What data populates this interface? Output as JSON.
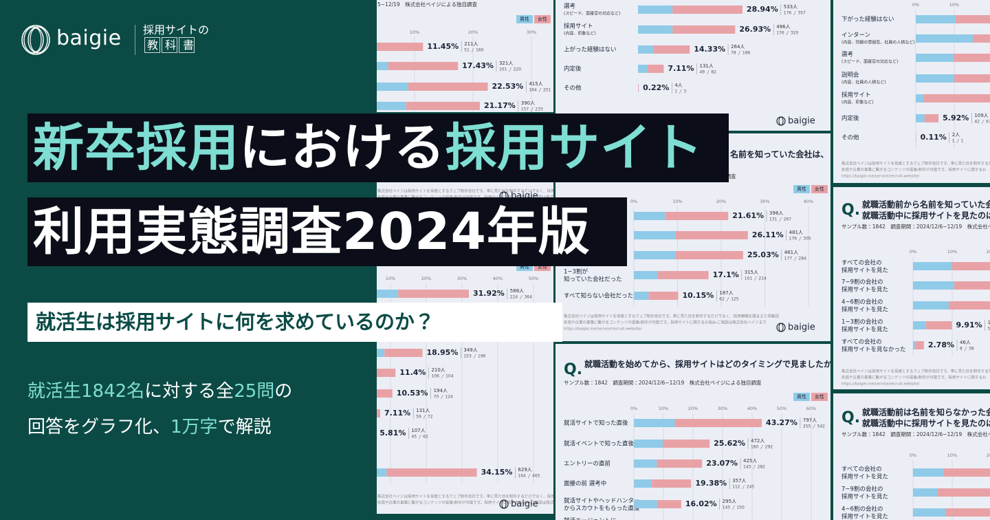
{
  "header": {
    "logo": "baigie",
    "tagline": "採用サイトの",
    "series_name": "教科書"
  },
  "title": {
    "line1": [
      {
        "text": "新卒採用",
        "accent": true
      },
      {
        "text": "における"
      },
      {
        "text": "採用サイト",
        "accent": true
      }
    ],
    "line2": "利用実態調査2024年版"
  },
  "subtitle": "就活生は採用サイトに何を求めているのか？",
  "description": [
    [
      {
        "text": "就活生1842名",
        "accent": true
      },
      {
        "text": "に対する全"
      },
      {
        "text": "25問",
        "accent": true
      },
      {
        "text": "の"
      }
    ],
    [
      {
        "text": "回答をグラフ化、"
      },
      {
        "text": "1万字",
        "accent": true
      },
      {
        "text": "で解説"
      }
    ]
  ],
  "cards": [
    {
      "sample": "5~12/19　株式会社ベイジによる独自調査",
      "legend": [
        "男性",
        "女性"
      ],
      "ticks": [
        {
          "value": 10,
          "label": "10%"
        },
        {
          "value": 20,
          "label": "20%"
        },
        {
          "value": 30,
          "label": "30%"
        }
      ],
      "rows": [
        {
          "value": 11.45,
          "value_label": "11.45%",
          "count": 211,
          "count_label": "211人",
          "male": 51,
          "female": 160
        },
        {
          "value": 17.43,
          "value_label": "17.43%",
          "count": 321,
          "count_label": "321人",
          "male": 101,
          "female": 220
        },
        {
          "value": 22.53,
          "value_label": "22.53%",
          "count": 415,
          "count_label": "415人",
          "male": 164,
          "female": 251
        },
        {
          "value": 21.17,
          "value_label": "21.17%",
          "count": 390,
          "count_label": "390人",
          "male": 157,
          "female": 233
        }
      ]
    },
    {
      "footer": [
        "株式会社ベイジは採用サイトを得意とするウェブ制作会社です。単に見た目を制作するだけでなく、採用戦略を踏まえた母集団",
        "形成や企業の事業に繋がるコンテンツの提案・制作が可能です。採用サイトに関するお悩み・ご相談は株式会社ベイジまで"
      ],
      "logo": "baigie"
    },
    {
      "legend": [
        "男性",
        "女性"
      ],
      "ticks": [
        {
          "value": 10,
          "label": "10%"
        },
        {
          "value": 20,
          "label": "20%"
        },
        {
          "value": 30,
          "label": "30%"
        },
        {
          "value": 40,
          "label": "40%"
        },
        {
          "value": 50,
          "label": "50%"
        }
      ],
      "rows": [
        {
          "value": 31.92,
          "value_label": "31.92%",
          "count": 588,
          "count_label": "588人",
          "male": 224,
          "female": 364
        },
        {
          "value": 18.95,
          "value_label": "18.95%",
          "count": 349,
          "count_label": "349人",
          "male": 153,
          "female": 196
        },
        {
          "value": 11.4,
          "value_label": "11.4%",
          "count": 210,
          "count_label": "210人",
          "male": 106,
          "female": 104
        },
        {
          "value": 10.53,
          "value_label": "10.53%",
          "count": 194,
          "count_label": "194人",
          "male": 70,
          "female": 124
        },
        {
          "value": 7.11,
          "value_label": "7.11%",
          "count": 131,
          "count_label": "131人",
          "male": 59,
          "female": 72
        },
        {
          "value": 5.81,
          "value_label": "5.81%",
          "count": 107,
          "count_label": "107人",
          "male": 45,
          "female": 62
        },
        {
          "count": 4,
          "count_label": "4人",
          "male": 1,
          "female": 3
        },
        {
          "value": 34.15,
          "value_label": "34.15%",
          "count": 629,
          "count_label": "629人",
          "male": 164,
          "female": 465
        }
      ],
      "footer": [
        "株式会社ベイジは採用サイトを得意とするウェブ制作会社です。単に見た目を制作するだけでなく、採用戦略を踏まえた母集団",
        "形成や企業の事業に繋がるコンテンツの提案・制作が可能です。採用サイトに関するお悩み・ご相談は株式会社ベイジまで"
      ],
      "logo": "baigie"
    },
    {
      "rows": [
        {
          "label": [
            "選考"
          ],
          "note": "(スピード、面接官の対応など)",
          "value": 28.94,
          "value_label": "28.94%",
          "count": 533,
          "count_label": "533人",
          "male": 176,
          "female": 357
        },
        {
          "label": [
            "採用サイト"
          ],
          "note": "(内容、印象など)",
          "value": 26.93,
          "value_label": "26.93%",
          "count": 496,
          "count_label": "496人",
          "male": 176,
          "female": 320
        },
        {
          "label": [
            "上がった経験はない"
          ],
          "value": 14.33,
          "value_label": "14.33%",
          "count": 264,
          "count_label": "264人",
          "male": 78,
          "female": 186
        },
        {
          "label": [
            "内定後"
          ],
          "value": 7.11,
          "value_label": "7.11%",
          "count": 131,
          "count_label": "131人",
          "male": 49,
          "female": 82
        },
        {
          "label": [
            "その他"
          ],
          "value": 0.22,
          "value_label": "0.22%",
          "count": 4,
          "count_label": "4人",
          "male": 1,
          "female": 3
        }
      ],
      "logo": "baigie"
    },
    {
      "question": [
        "名前を知っていた会社は、"
      ],
      "sample": "自調査",
      "legend": [
        "男性",
        "女性"
      ],
      "ticks": [
        {
          "value": 0,
          "label": "0%"
        },
        {
          "value": 10,
          "label": "10%"
        },
        {
          "value": 20,
          "label": "20%"
        },
        {
          "value": 30,
          "label": "30%"
        },
        {
          "value": 40,
          "label": "40%"
        }
      ],
      "rows": [
        {
          "value": 21.61,
          "value_label": "21.61%",
          "count": 398,
          "count_label": "398人",
          "male": 131,
          "female": 267
        },
        {
          "value": 26.11,
          "value_label": "26.11%",
          "count": 481,
          "count_label": "481人",
          "male": 176,
          "female": 305
        },
        {
          "value": 25.03,
          "value_label": "25.03%",
          "count": 461,
          "count_label": "461人",
          "male": 177,
          "female": 284
        },
        {
          "label": [
            "1~3割が",
            "知っていた会社だった"
          ],
          "value": 17.1,
          "value_label": "17.1%",
          "count": 315,
          "count_label": "315人",
          "male": 101,
          "female": 214
        },
        {
          "label": [
            "すべて知らない会社だった"
          ],
          "value": 10.15,
          "value_label": "10.15%",
          "count": 187,
          "count_label": "187人",
          "male": 62,
          "female": 125
        }
      ],
      "footer": [
        "株式会社ベイジは採用サイトを得意とするウェブ制作会社です。単に見た目を制作するだけでなく、採用戦略を踏まえた母集団",
        "形成や企業の事業に繋がるコンテンツの提案・制作が可能です。採用サイトに関するお悩み・ご相談は株式会社ベイジまで",
        "https://baigie.me/service/recruit-website/"
      ],
      "logo": "baigie"
    },
    {
      "mark": "Q.",
      "question": [
        "就職活動を始めてから、採用サイトはどのタイミングで見ましたか？"
      ],
      "sample": "サンプル数：1842　調査期間：2024/12/6~12/19　株式会社ベイジによる独自調査",
      "legend": [
        "男性",
        "女性"
      ],
      "ticks": [
        {
          "value": 0,
          "label": "0%"
        },
        {
          "value": 10,
          "label": "10%"
        },
        {
          "value": 20,
          "label": "20%"
        },
        {
          "value": 30,
          "label": "30%"
        },
        {
          "value": 40,
          "label": "40%"
        },
        {
          "value": 50,
          "label": "50%"
        },
        {
          "value": 60,
          "label": "60%"
        }
      ],
      "rows": [
        {
          "label": [
            "就活サイトで知った直後"
          ],
          "value": 43.27,
          "value_label": "43.27%",
          "count": 797,
          "count_label": "797人",
          "male": 255,
          "female": 542
        },
        {
          "label": [
            "就活イベントで知った直後"
          ],
          "value": 25.62,
          "value_label": "25.62%",
          "count": 472,
          "count_label": "472人",
          "male": 180,
          "female": 292
        },
        {
          "label": [
            "エントリーの直前"
          ],
          "value": 23.07,
          "value_label": "23.07%",
          "count": 425,
          "count_label": "425人",
          "male": 143,
          "female": 282
        },
        {
          "label": [
            "面接の前 選考中"
          ],
          "value": 19.38,
          "value_label": "19.38%",
          "count": 357,
          "count_label": "357人",
          "male": 112,
          "female": 245
        },
        {
          "label": [
            "就活サイトやヘッドハンター",
            "からスカウトをもらった直後"
          ],
          "value": 16.02,
          "value_label": "16.02%",
          "count": 295,
          "count_label": "295人",
          "male": 145,
          "female": 150
        },
        {
          "label": [
            "就活エージェントに"
          ]
        }
      ]
    },
    {
      "ticks": [
        {
          "value": 0,
          "label": "0%"
        },
        {
          "value": 10,
          "label": "10%"
        }
      ],
      "rows": [
        {
          "label": [
            "下がった経験はない"
          ]
        },
        {
          "label": [
            "インターン"
          ],
          "note": "(内容、同期の雰囲気、社員の人柄など)"
        },
        {
          "label": [
            "選考"
          ],
          "note": "(スピード、面接官の対応など)"
        },
        {
          "label": [
            "説明会"
          ],
          "note": "(内容、社員の人柄など)"
        },
        {
          "label": [
            "採用サイト"
          ],
          "note": "(内容、印象など)"
        },
        {
          "label": [
            "内定後"
          ],
          "value": 5.92,
          "value_label": "5.92%",
          "count": 109,
          "count_label": "109人",
          "male": 42,
          "female": 67
        },
        {
          "label": [
            "その他"
          ],
          "value": 0.11,
          "value_label": "0.11%",
          "count": 2,
          "count_label": "2人",
          "male": 1,
          "female": 1
        }
      ],
      "footer": [
        "株式会社ベイジは採用サイトを得意とするウェブ制作会社です。単に見た目を制作するだけで",
        "形成や企業の事業に繋がるコンテンツの提案・制作が可能です。採用サイトに関するお",
        "https://baigie.me/service/recruit-website/"
      ]
    },
    {
      "mark": "Q.",
      "question": [
        "就職活動前から名前を知っていた会社の",
        "就職活動中に採用サイトを見たのは、ど"
      ],
      "sample": "サンプル数：1842　調査期間：2024/12/6~12/19　株式会社ベイジによる",
      "ticks": [
        {
          "value": 0,
          "label": "0%"
        },
        {
          "value": 10,
          "label": "10%"
        },
        {
          "value": 20,
          "label": "20%"
        }
      ],
      "rows": [
        {
          "label": [
            "すべての会社の",
            "採用サイトを見た"
          ]
        },
        {
          "label": [
            "7~9割の会社の",
            "採用サイトを見た"
          ]
        },
        {
          "label": [
            "4~6割の会社の",
            "採用サイトを見た"
          ]
        },
        {
          "label": [
            "1~3割の会社の",
            "採用サイトを見た"
          ],
          "value": 9.91,
          "value_label": "9.91%",
          "count": 164,
          "count_label": "164人",
          "male": 54,
          "female": 110
        },
        {
          "label": [
            "すべての会社の",
            "採用サイトを見なかった"
          ],
          "value": 2.78,
          "value_label": "2.78%",
          "count": 46,
          "count_label": "46人",
          "male": 8,
          "female": 38
        }
      ],
      "footer": [
        "株式会社ベイジは採用サイトを得意とするウェブ制作会社です。単に見た目を制作するだけで",
        "形成や企業の事業に繋がるコンテンツの提案・制作が可能です。採用サイトに関するお",
        "https://baigie.me/service/recruit-website/"
      ]
    },
    {
      "mark": "Q.",
      "question": [
        "就職活動前は名前を知らなかった会社",
        "就職活動中に採用サイトを見たのは、"
      ],
      "sample": "サンプル数：1842　調査期間：2024/12/6~12/19　株式会社ベイジによる",
      "ticks": [
        {
          "value": 0,
          "label": "0%"
        },
        {
          "value": 10,
          "label": "10%"
        },
        {
          "value": 20,
          "label": "20%"
        }
      ],
      "rows": [
        {
          "label": [
            "すべての会社の",
            "採用サイトを見た"
          ]
        },
        {
          "label": [
            "7~9割の会社の",
            "採用サイトを見た"
          ]
        },
        {
          "label": [
            "4~6割の会社の",
            "採用サイトを見た"
          ]
        }
      ]
    }
  ]
}
